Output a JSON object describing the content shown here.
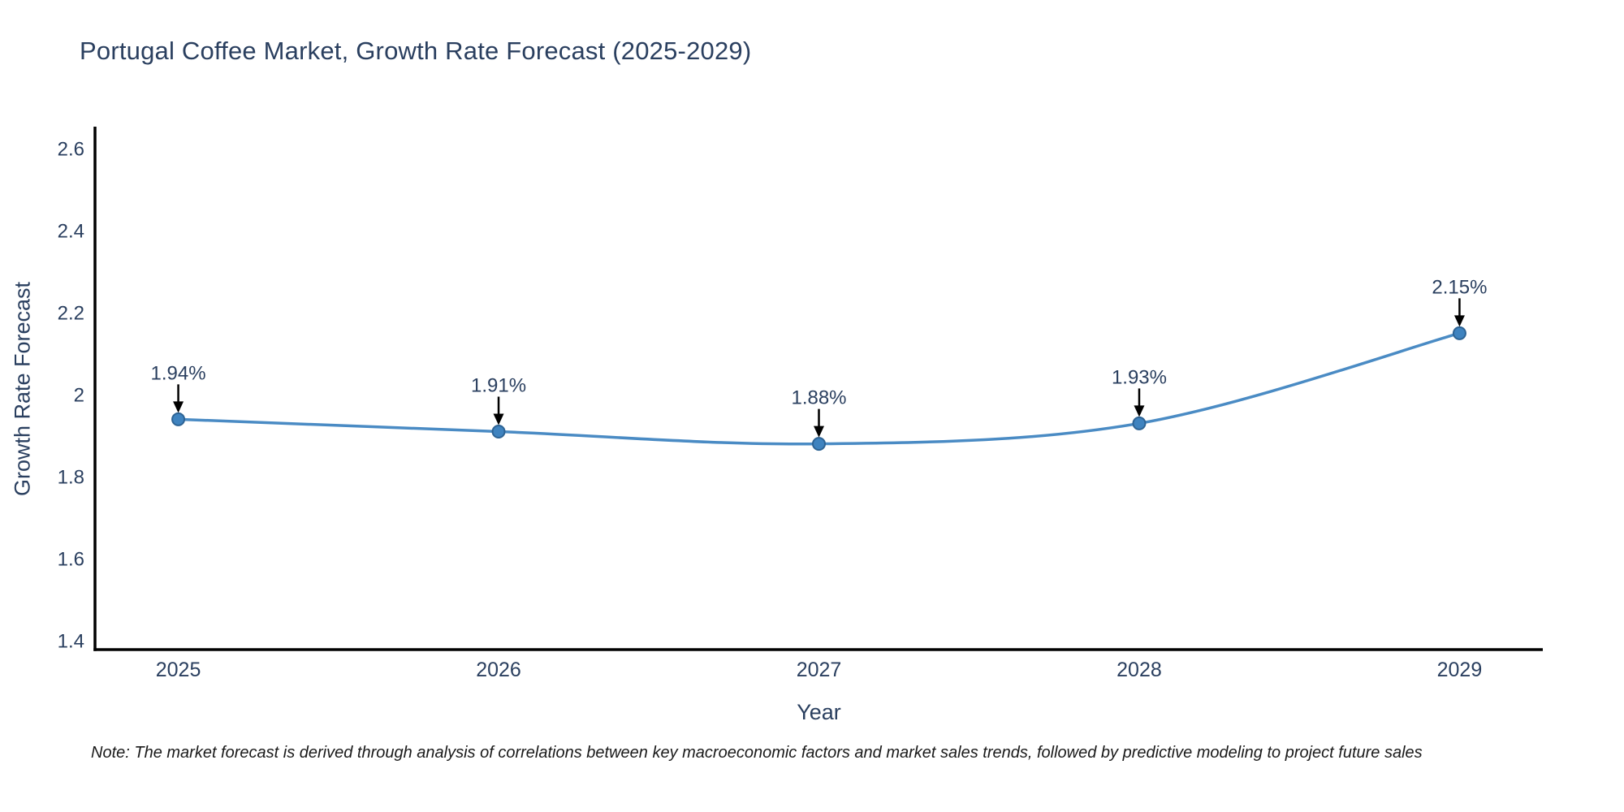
{
  "chart_data": {
    "type": "line",
    "title": "Portugal Coffee Market, Growth Rate Forecast (2025-2029)",
    "xlabel": "Year",
    "ylabel": "Growth Rate Forecast",
    "x": [
      2025,
      2026,
      2027,
      2028,
      2029
    ],
    "series": [
      {
        "name": "Growth Rate Forecast",
        "values": [
          1.94,
          1.91,
          1.88,
          1.93,
          2.15
        ],
        "point_labels": [
          "1.94%",
          "1.91%",
          "1.88%",
          "1.93%",
          "2.15%"
        ]
      }
    ],
    "xtick_labels": [
      "2025",
      "2026",
      "2027",
      "2028",
      "2029"
    ],
    "ytick_labels": [
      "1.4",
      "1.6",
      "1.8",
      "2",
      "2.2",
      "2.4",
      "2.6"
    ],
    "xlim": [
      2024.74,
      2029.26
    ],
    "ylim": [
      1.378,
      2.65
    ],
    "grid": false,
    "legend": "none",
    "line_shape": "spline",
    "annotation_style": "down-arrow",
    "colors": {
      "line": "#4a8bc4",
      "marker_fill": "#3f83bf",
      "marker_edge": "#2d6394",
      "axis": "#000000",
      "tick_text": "#2a3f5f",
      "annotation_text": "#2a3f5f",
      "arrow": "#000000"
    }
  },
  "footer": {
    "note": "Note: The market forecast is derived through analysis of correlations between key macroeconomic factors and market sales trends, followed by predictive modeling to project future sales"
  }
}
